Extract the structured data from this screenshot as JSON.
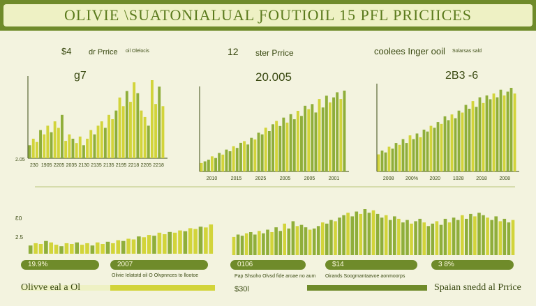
{
  "banner": {
    "title": "OLIVIE  \\SUATONIALUAL ƑOUTIOIL    15  PFL PRICIICES"
  },
  "colors": {
    "dark_green": "#6f8b2a",
    "mid_green": "#8fae3a",
    "yellow": "#d2d43a",
    "light": "#eef1c4"
  },
  "chart_data": [
    {
      "type": "bar",
      "header_small": [
        "$4",
        "dr Prrice",
        "oil Olelocis"
      ],
      "value_label": "g7",
      "xticks": [
        "230",
        "1905",
        "2205",
        "2035",
        "2130",
        "2135",
        "2135",
        "2195",
        "2218",
        "2205",
        "2218"
      ],
      "ytick_top": "2.05",
      "values": [
        12,
        18,
        15,
        26,
        22,
        30,
        24,
        34,
        28,
        40,
        16,
        22,
        18,
        14,
        20,
        12,
        18,
        26,
        22,
        30,
        34,
        28,
        40,
        36,
        44,
        56,
        48,
        62,
        52,
        70,
        60,
        44,
        38,
        30,
        72,
        50,
        66,
        48
      ]
    },
    {
      "type": "bar",
      "header": [
        "12",
        "ster Prrice"
      ],
      "value_label": "20.005",
      "xticks": [
        "2010",
        "2015",
        "2025",
        "2005",
        "2005",
        "2001"
      ],
      "values": [
        10,
        12,
        14,
        18,
        16,
        22,
        20,
        26,
        24,
        30,
        28,
        34,
        36,
        32,
        40,
        38,
        46,
        44,
        52,
        48,
        56,
        60,
        54,
        64,
        58,
        68,
        62,
        72,
        66,
        78,
        74,
        80,
        70,
        86,
        76,
        90,
        82,
        88,
        94,
        86,
        96
      ]
    },
    {
      "type": "bar",
      "header": [
        "coolees Inger ooil",
        "Solarsas sald"
      ],
      "value_label": "2B3 -6",
      "xticks": [
        "2008",
        "200%",
        "2020",
        "1028",
        "2018",
        "2008"
      ],
      "values": [
        18,
        22,
        20,
        26,
        24,
        30,
        28,
        34,
        30,
        38,
        34,
        40,
        36,
        44,
        42,
        48,
        46,
        52,
        50,
        58,
        54,
        60,
        56,
        64,
        62,
        70,
        66,
        74,
        68,
        78,
        72,
        80,
        76,
        82,
        78,
        86,
        80,
        84,
        88,
        82
      ]
    },
    {
      "type": "bar",
      "values": [
        22,
        28,
        26,
        34,
        30,
        24,
        20,
        28,
        26,
        30,
        24,
        28,
        22,
        30,
        26,
        32,
        28,
        36,
        34,
        40,
        38,
        46,
        44,
        50,
        48,
        56,
        52,
        58,
        56,
        62,
        60,
        68,
        66,
        72,
        70,
        78
      ],
      "ytick_top": "Ɛ0",
      "ytick_mid": "2.5",
      "pills": [
        "19.9%",
        "2007"
      ],
      "legend": "Olivie Ielatotd oil O Olvpnnces to llootoe"
    },
    {
      "type": "bar",
      "values": [
        30,
        34,
        32,
        36,
        38,
        34,
        40,
        36,
        42,
        38,
        46,
        40,
        52,
        44,
        56,
        48,
        50,
        46,
        42,
        44,
        48,
        54,
        52,
        58,
        56,
        62,
        66,
        70,
        64,
        72,
        68,
        76,
        70,
        74,
        68,
        62,
        66,
        58,
        64,
        60,
        54,
        58,
        52,
        56,
        60,
        54,
        48,
        52,
        56,
        50,
        60,
        54,
        62,
        58,
        66,
        60,
        68,
        64,
        70,
        66,
        62,
        58,
        64,
        56,
        60,
        54,
        58
      ],
      "pills": [
        "0106",
        "$14",
        "3 8%"
      ],
      "legend": "Oirands Soogmantaavoe aonmoorps"
    }
  ],
  "footer": {
    "left": "Olivve eal a  Ol",
    "mid_small": "Pap Shsoho Olvsd fide aroae no aum",
    "mid_value": "$30l",
    "right": "Spaian  snedd  al Prrice"
  }
}
